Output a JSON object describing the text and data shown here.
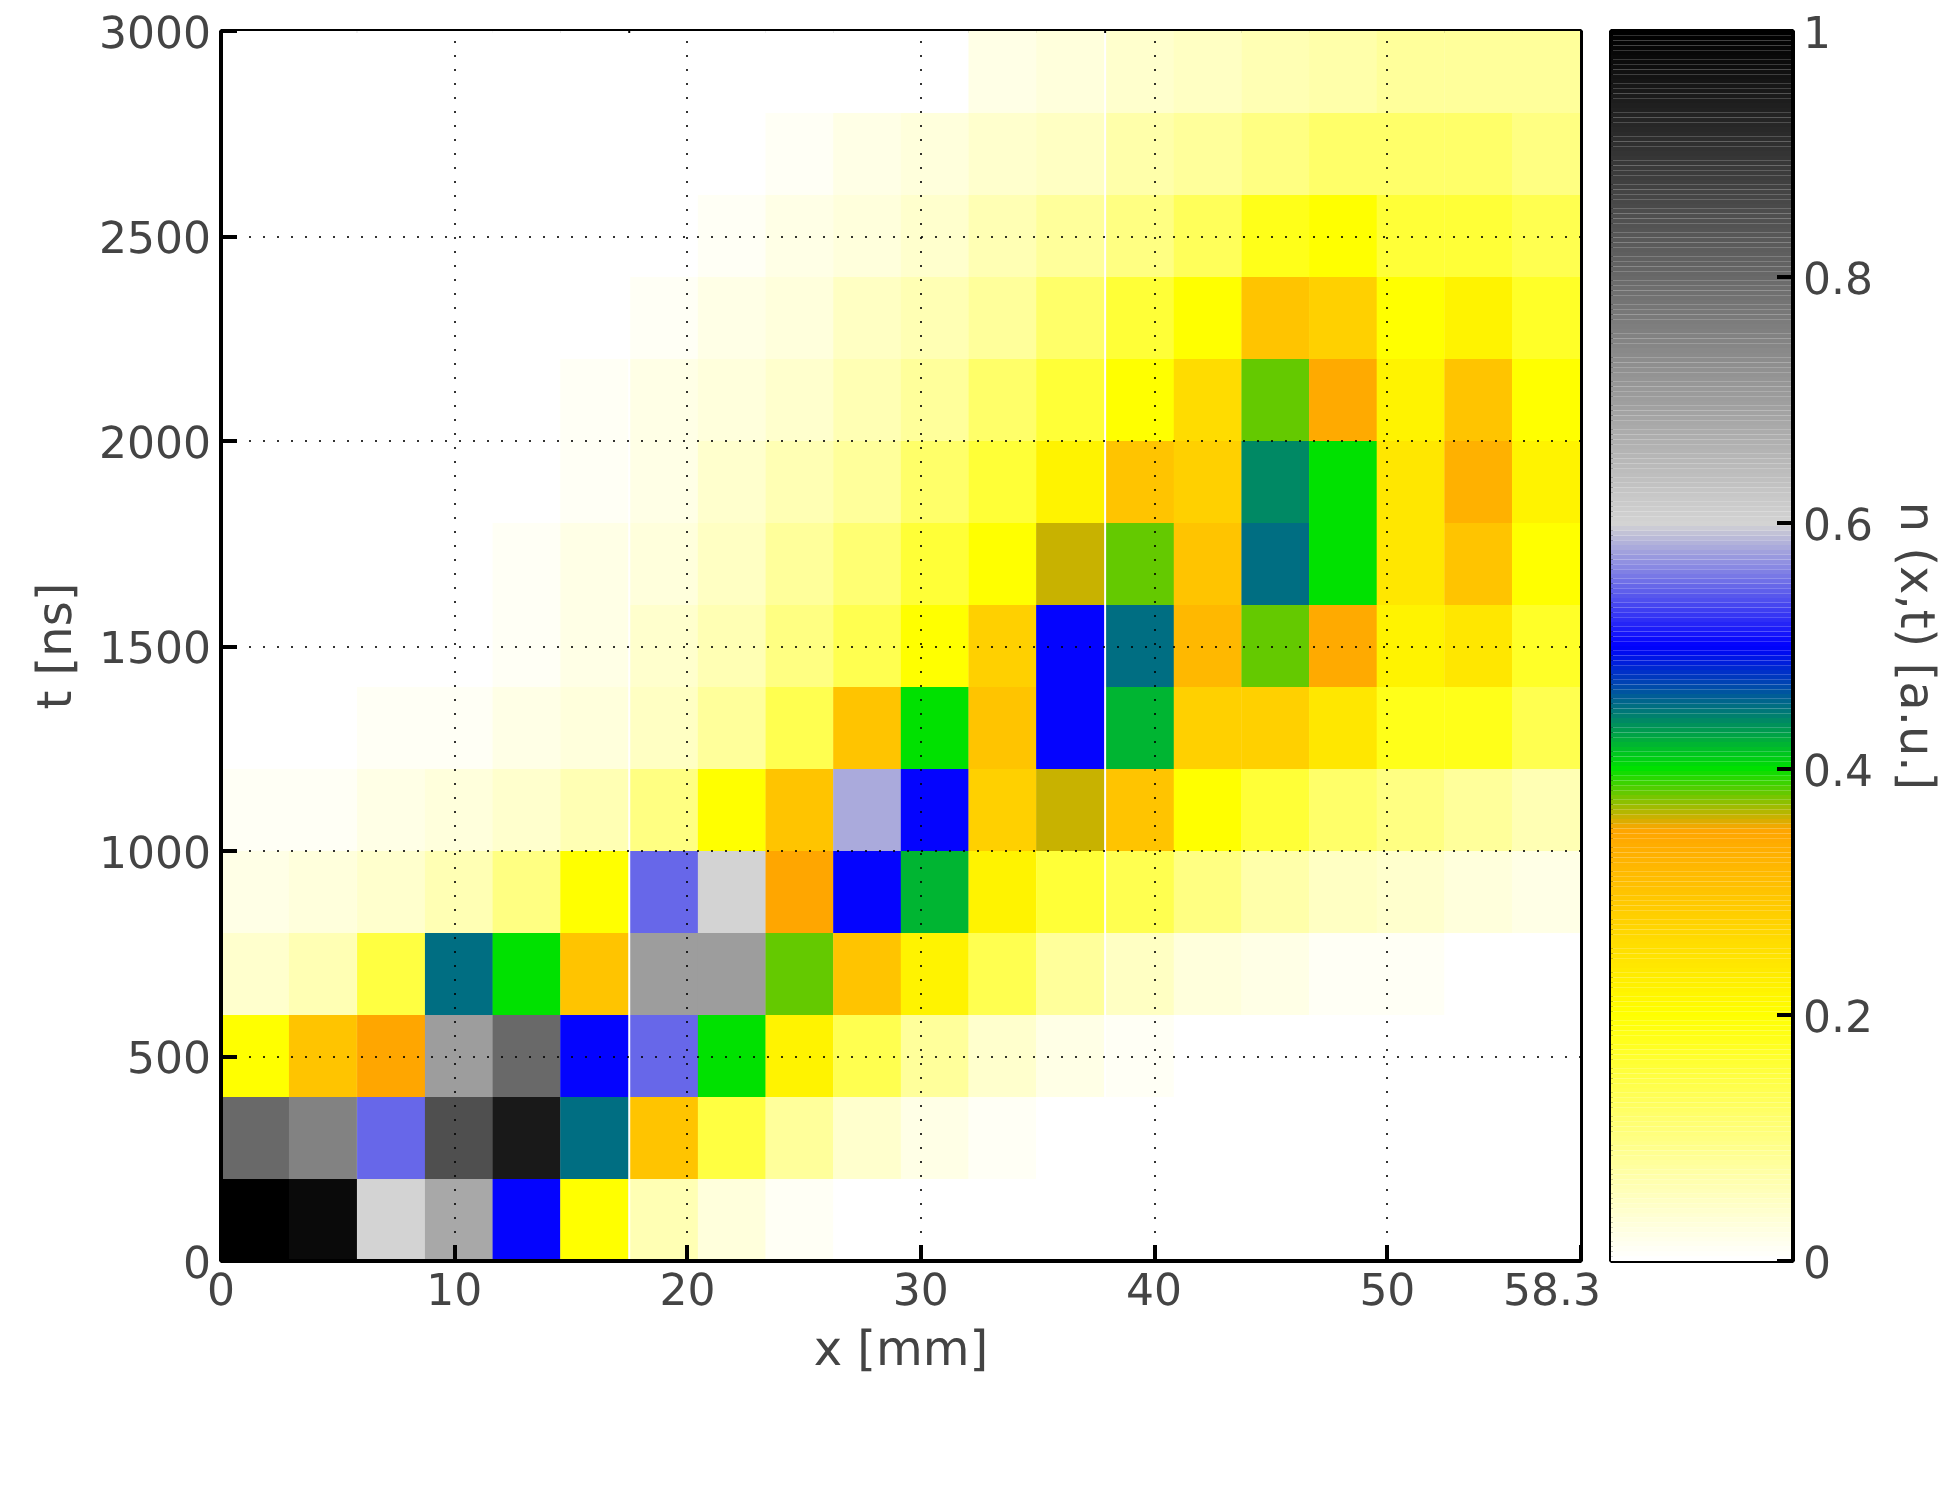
{
  "chart_data": {
    "type": "heatmap",
    "xlabel": "x [mm]",
    "ylabel": "t [ns]",
    "clabel": "n (x,t) [a.u.]",
    "xlim": [
      0,
      58.3
    ],
    "ylim": [
      0,
      3000
    ],
    "xticks": [
      0,
      10,
      20,
      30,
      40,
      50,
      58.3
    ],
    "yticks": [
      0,
      500,
      1000,
      1500,
      2000,
      2500,
      3000
    ],
    "clim": [
      0,
      1
    ],
    "cticks": [
      0,
      0.2,
      0.4,
      0.6,
      0.8,
      1
    ],
    "grid": true,
    "x": [
      1.46,
      4.37,
      7.29,
      10.2,
      13.1,
      16.0,
      19.0,
      21.9,
      24.8,
      27.7,
      30.6,
      33.5,
      36.4,
      39.4,
      42.3,
      45.2,
      48.1,
      51.0,
      53.9,
      56.8
    ],
    "y": [
      2900,
      2700,
      2500,
      2300,
      2100,
      1900,
      1700,
      1500,
      1300,
      1100,
      900,
      700,
      500,
      300,
      100
    ],
    "cells": [
      [
        0,
        0,
        0,
        0,
        0,
        0,
        0,
        0,
        0,
        0,
        0,
        0.02,
        0.03,
        0.04,
        0.05,
        0.06,
        0.07,
        0.08,
        0.08,
        0.08
      ],
      [
        0,
        0,
        0,
        0,
        0,
        0,
        0,
        0,
        0.01,
        0.02,
        0.03,
        0.04,
        0.05,
        0.07,
        0.08,
        0.1,
        0.12,
        0.12,
        0.12,
        0.1
      ],
      [
        0,
        0,
        0,
        0,
        0,
        0,
        0,
        0.01,
        0.02,
        0.03,
        0.04,
        0.06,
        0.08,
        0.1,
        0.13,
        0.18,
        0.2,
        0.16,
        0.16,
        0.14
      ],
      [
        0,
        0,
        0,
        0,
        0,
        0,
        0.01,
        0.02,
        0.03,
        0.05,
        0.06,
        0.08,
        0.12,
        0.16,
        0.2,
        0.3,
        0.28,
        0.2,
        0.22,
        0.17
      ],
      [
        0,
        0,
        0,
        0,
        0,
        0.01,
        0.02,
        0.03,
        0.04,
        0.06,
        0.08,
        0.12,
        0.16,
        0.2,
        0.26,
        0.38,
        0.34,
        0.22,
        0.3,
        0.2
      ],
      [
        0,
        0,
        0,
        0,
        0,
        0.01,
        0.02,
        0.04,
        0.06,
        0.08,
        0.12,
        0.16,
        0.22,
        0.3,
        0.28,
        0.44,
        0.4,
        0.24,
        0.33,
        0.22
      ],
      [
        0,
        0,
        0,
        0,
        0.01,
        0.02,
        0.03,
        0.05,
        0.08,
        0.11,
        0.16,
        0.2,
        0.36,
        0.38,
        0.3,
        0.45,
        0.4,
        0.24,
        0.3,
        0.2
      ],
      [
        0,
        0,
        0,
        0,
        0.01,
        0.02,
        0.04,
        0.06,
        0.1,
        0.14,
        0.2,
        0.28,
        0.5,
        0.45,
        0.32,
        0.38,
        0.34,
        0.22,
        0.24,
        0.17
      ],
      [
        0,
        0,
        0.01,
        0.01,
        0.02,
        0.03,
        0.05,
        0.08,
        0.14,
        0.3,
        0.4,
        0.3,
        0.5,
        0.42,
        0.28,
        0.28,
        0.24,
        0.18,
        0.18,
        0.14
      ],
      [
        0.01,
        0.01,
        0.02,
        0.03,
        0.04,
        0.06,
        0.1,
        0.2,
        0.3,
        0.58,
        0.5,
        0.28,
        0.36,
        0.3,
        0.2,
        0.16,
        0.12,
        0.1,
        0.08,
        0.06
      ],
      [
        0.02,
        0.03,
        0.04,
        0.06,
        0.1,
        0.2,
        0.55,
        0.6,
        0.35,
        0.5,
        0.42,
        0.22,
        0.16,
        0.14,
        0.1,
        0.07,
        0.05,
        0.04,
        0.03,
        0.02
      ],
      [
        0.04,
        0.06,
        0.15,
        0.45,
        0.4,
        0.3,
        0.7,
        0.7,
        0.38,
        0.3,
        0.22,
        0.14,
        0.08,
        0.05,
        0.03,
        0.02,
        0.01,
        0.01,
        0,
        0
      ],
      [
        0.2,
        0.3,
        0.35,
        0.7,
        0.8,
        0.5,
        0.55,
        0.4,
        0.22,
        0.14,
        0.08,
        0.04,
        0.02,
        0.01,
        0,
        0,
        0,
        0,
        0,
        0
      ],
      [
        0.8,
        0.75,
        0.55,
        0.85,
        0.95,
        0.45,
        0.3,
        0.15,
        0.08,
        0.04,
        0.02,
        0.01,
        0,
        0,
        0,
        0,
        0,
        0,
        0,
        0
      ],
      [
        1.0,
        0.98,
        0.6,
        0.68,
        0.5,
        0.2,
        0.06,
        0.03,
        0.01,
        0,
        0,
        0,
        0,
        0,
        0,
        0,
        0,
        0,
        0,
        0
      ]
    ]
  }
}
